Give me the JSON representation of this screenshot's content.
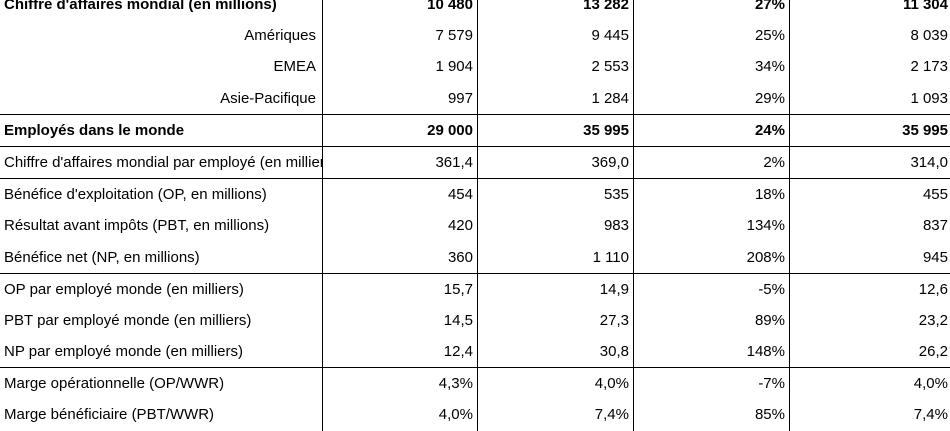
{
  "rows": [
    {
      "label": "Chiffre d'affaires mondial (en millions)",
      "v1": "10 480",
      "v2": "13 282",
      "v3": "27%",
      "v4": "11 304"
    },
    {
      "label": "Amériques",
      "v1": "7 579",
      "v2": "9 445",
      "v3": "25%",
      "v4": "8 039"
    },
    {
      "label": "EMEA",
      "v1": "1 904",
      "v2": "2 553",
      "v3": "34%",
      "v4": "2 173"
    },
    {
      "label": "Asie-Pacifique",
      "v1": "997",
      "v2": "1 284",
      "v3": "29%",
      "v4": "1 093"
    },
    {
      "label": "Employés dans le monde",
      "v1": "29 000",
      "v2": "35 995",
      "v3": "24%",
      "v4": "35 995"
    },
    {
      "label": "Chiffre d'affaires mondial par employé (en milliers)",
      "v1": "361,4",
      "v2": "369,0",
      "v3": "2%",
      "v4": "314,0"
    },
    {
      "label": "Bénéfice d'exploitation (OP, en millions)",
      "v1": "454",
      "v2": "535",
      "v3": "18%",
      "v4": "455"
    },
    {
      "label": "Résultat avant impôts (PBT, en millions)",
      "v1": "420",
      "v2": "983",
      "v3": "134%",
      "v4": "837"
    },
    {
      "label": "Bénéfice net (NP, en millions)",
      "v1": "360",
      "v2": "1 110",
      "v3": "208%",
      "v4": "945"
    },
    {
      "label": "OP par employé monde (en milliers)",
      "v1": "15,7",
      "v2": "14,9",
      "v3": "-5%",
      "v4": "12,6"
    },
    {
      "label": "PBT par employé monde (en milliers)",
      "v1": "14,5",
      "v2": "27,3",
      "v3": "89%",
      "v4": "23,2"
    },
    {
      "label": "NP par employé monde (en milliers)",
      "v1": "12,4",
      "v2": "30,8",
      "v3": "148%",
      "v4": "26,2"
    },
    {
      "label": "Marge opérationnelle (OP/WWR)",
      "v1": "4,3%",
      "v2": "4,0%",
      "v3": "-7%",
      "v4": "4,0%"
    },
    {
      "label": "Marge bénéficiaire (PBT/WWR)",
      "v1": "4,0%",
      "v2": "7,4%",
      "v3": "85%",
      "v4": "7,4%"
    }
  ]
}
